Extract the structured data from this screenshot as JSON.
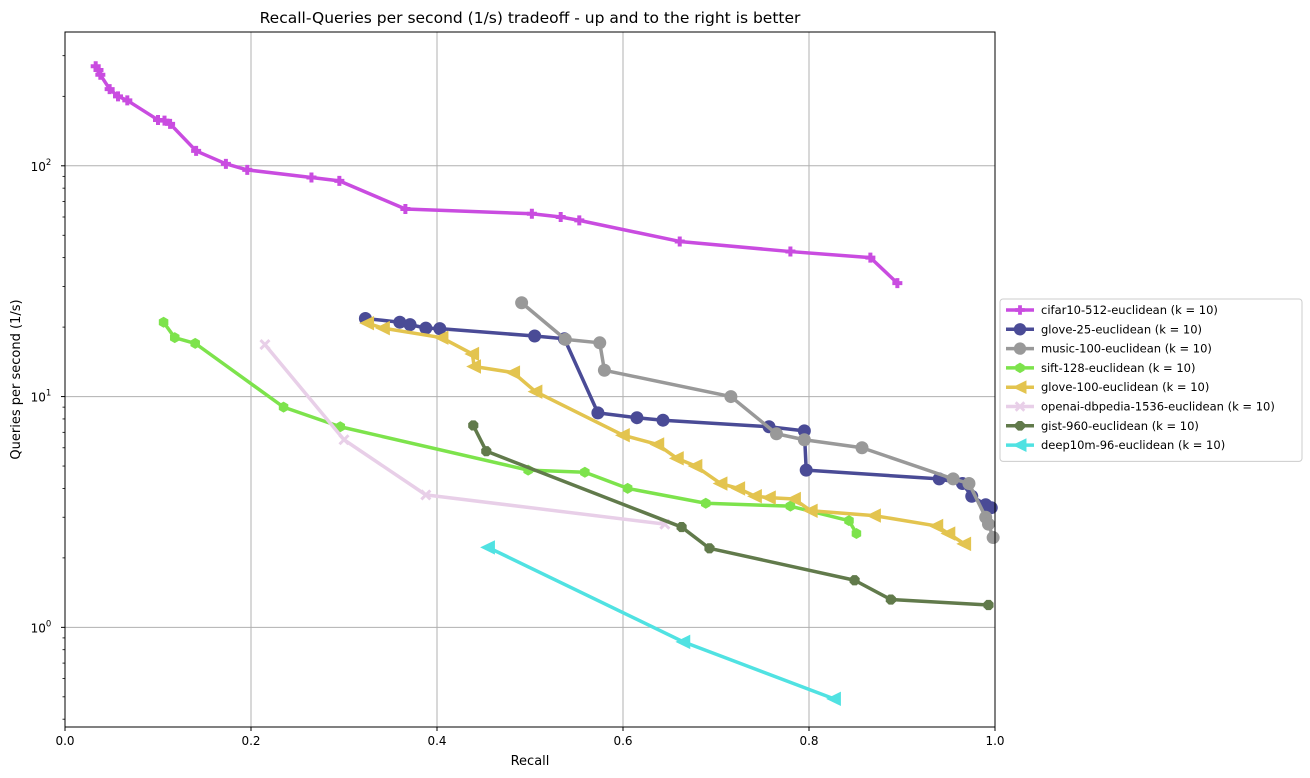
{
  "chart_data": {
    "type": "line",
    "title": "Recall-Queries per second (1/s) tradeoff - up and to the right is better",
    "xlabel": "Recall",
    "ylabel": "Queries per second (1/s)",
    "xlim": [
      0.0,
      1.0
    ],
    "ylim": [
      0.37,
      380
    ],
    "yscale": "log",
    "grid": true,
    "legend_placement": "right, outside plot",
    "x_ticks": [
      {
        "value": 0.0,
        "label": "0.0"
      },
      {
        "value": 0.2,
        "label": "0.2"
      },
      {
        "value": 0.4,
        "label": "0.4"
      },
      {
        "value": 0.6,
        "label": "0.6"
      },
      {
        "value": 0.8,
        "label": "0.8"
      },
      {
        "value": 1.0,
        "label": "1.0"
      }
    ],
    "y_ticks": [
      {
        "value": 1,
        "label_base": "10",
        "label_exp": "0"
      },
      {
        "value": 10,
        "label_base": "10",
        "label_exp": "1"
      },
      {
        "value": 100,
        "label_base": "10",
        "label_exp": "2"
      }
    ],
    "series": [
      {
        "name": "cifar10-512-euclidean (k = 10)",
        "color": "#c94ce0",
        "marker": "plus",
        "points": [
          [
            0.033,
            270
          ],
          [
            0.036,
            260
          ],
          [
            0.038,
            248
          ],
          [
            0.048,
            215
          ],
          [
            0.057,
            200
          ],
          [
            0.067,
            192
          ],
          [
            0.1,
            158
          ],
          [
            0.107,
            157
          ],
          [
            0.113,
            152
          ],
          [
            0.141,
            116
          ],
          [
            0.173,
            102
          ],
          [
            0.196,
            96
          ],
          [
            0.265,
            89
          ],
          [
            0.295,
            86
          ],
          [
            0.366,
            65
          ],
          [
            0.502,
            62
          ],
          [
            0.533,
            60
          ],
          [
            0.553,
            58
          ],
          [
            0.661,
            47
          ],
          [
            0.78,
            42.5
          ],
          [
            0.866,
            40
          ],
          [
            0.895,
            31
          ]
        ]
      },
      {
        "name": "glove-25-euclidean (k = 10)",
        "color": "#4a4b96",
        "marker": "circle",
        "points": [
          [
            0.323,
            21.8
          ],
          [
            0.36,
            21
          ],
          [
            0.371,
            20.5
          ],
          [
            0.388,
            19.8
          ],
          [
            0.403,
            19.7
          ],
          [
            0.505,
            18.3
          ],
          [
            0.537,
            17.8
          ],
          [
            0.573,
            8.5
          ],
          [
            0.615,
            8.1
          ],
          [
            0.643,
            7.9
          ],
          [
            0.757,
            7.4
          ],
          [
            0.795,
            7.1
          ],
          [
            0.797,
            4.8
          ],
          [
            0.94,
            4.4
          ],
          [
            0.965,
            4.2
          ],
          [
            0.975,
            3.7
          ],
          [
            0.99,
            3.4
          ],
          [
            0.996,
            3.3
          ]
        ]
      },
      {
        "name": "music-100-euclidean (k = 10)",
        "color": "#999999",
        "marker": "circle",
        "points": [
          [
            0.491,
            25.5
          ],
          [
            0.538,
            17.7
          ],
          [
            0.575,
            17.1
          ],
          [
            0.58,
            13
          ],
          [
            0.716,
            10
          ],
          [
            0.765,
            6.9
          ],
          [
            0.795,
            6.5
          ],
          [
            0.857,
            6
          ],
          [
            0.955,
            4.4
          ],
          [
            0.972,
            4.2
          ],
          [
            0.99,
            3
          ],
          [
            0.993,
            2.8
          ],
          [
            0.998,
            2.45
          ]
        ]
      },
      {
        "name": "sift-128-euclidean (k = 10)",
        "color": "#7de34c",
        "marker": "hexagon",
        "points": [
          [
            0.106,
            21
          ],
          [
            0.118,
            18
          ],
          [
            0.14,
            17
          ],
          [
            0.235,
            9
          ],
          [
            0.296,
            7.4
          ],
          [
            0.498,
            4.8
          ],
          [
            0.559,
            4.7
          ],
          [
            0.605,
            4
          ],
          [
            0.689,
            3.45
          ],
          [
            0.78,
            3.35
          ],
          [
            0.843,
            2.9
          ],
          [
            0.851,
            2.55
          ]
        ]
      },
      {
        "name": "glove-100-euclidean (k = 10)",
        "color": "#e3c44f",
        "marker": "triangle-left",
        "points": [
          [
            0.325,
            20.8
          ],
          [
            0.342,
            19.8
          ],
          [
            0.405,
            18
          ],
          [
            0.438,
            15.3
          ],
          [
            0.44,
            13.5
          ],
          [
            0.482,
            12.7
          ],
          [
            0.506,
            10.5
          ],
          [
            0.6,
            6.8
          ],
          [
            0.637,
            6.2
          ],
          [
            0.658,
            5.4
          ],
          [
            0.678,
            5
          ],
          [
            0.705,
            4.2
          ],
          [
            0.724,
            4
          ],
          [
            0.742,
            3.7
          ],
          [
            0.757,
            3.65
          ],
          [
            0.784,
            3.6
          ],
          [
            0.802,
            3.2
          ],
          [
            0.87,
            3.05
          ],
          [
            0.937,
            2.75
          ],
          [
            0.95,
            2.55
          ],
          [
            0.967,
            2.3
          ]
        ]
      },
      {
        "name": "openai-dbpedia-1536-euclidean (k = 10)",
        "color": "#e8cfe8",
        "marker": "x",
        "points": [
          [
            0.215,
            16.8
          ],
          [
            0.3,
            6.5
          ],
          [
            0.388,
            3.75
          ],
          [
            0.645,
            2.8
          ]
        ]
      },
      {
        "name": "gist-960-euclidean (k = 10)",
        "color": "#617a4b",
        "marker": "octagon",
        "points": [
          [
            0.439,
            7.5
          ],
          [
            0.453,
            5.8
          ],
          [
            0.663,
            2.72
          ],
          [
            0.693,
            2.2
          ],
          [
            0.849,
            1.6
          ],
          [
            0.888,
            1.32
          ],
          [
            0.993,
            1.25
          ]
        ]
      },
      {
        "name": "deep10m-96-euclidean (k = 10)",
        "color": "#50e2e2",
        "marker": "triangle-left",
        "points": [
          [
            0.455,
            2.22
          ],
          [
            0.665,
            0.865
          ],
          [
            0.827,
            0.49
          ]
        ]
      }
    ]
  }
}
